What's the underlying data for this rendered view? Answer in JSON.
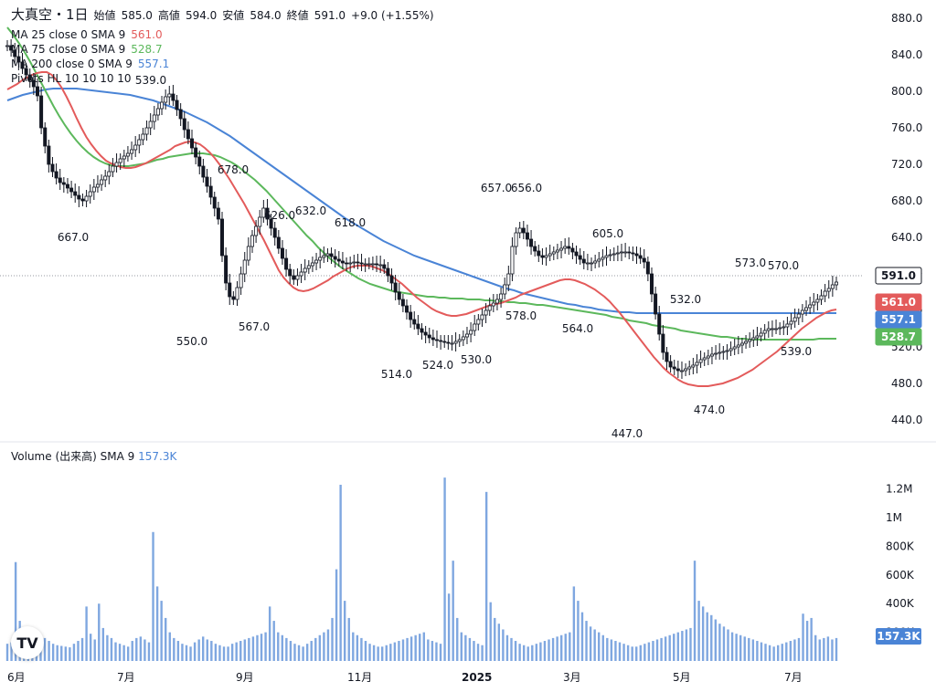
{
  "header": {
    "title": "大真空・1日",
    "open_label": "始値",
    "open": "585.0",
    "high_label": "高値",
    "high": "594.0",
    "low_label": "安値",
    "low": "584.0",
    "close_label": "終値",
    "close": "591.0",
    "change": "+9.0 (+1.55%)"
  },
  "indicators": [
    {
      "label": "MA 25 close 0 SMA 9",
      "value": "561.0",
      "color": "#e35b5b"
    },
    {
      "label": "MA 75 close 0 SMA 9",
      "value": "528.7",
      "color": "#5cb85c"
    },
    {
      "label": "MA 200 close 0 SMA 9",
      "value": "557.1",
      "color": "#4a84d6"
    },
    {
      "label": "Pivots HL 10 10 10 10",
      "value": "",
      "color": ""
    }
  ],
  "volume_legend": {
    "label": "Volume (出来高) SMA 9",
    "value": "157.3K"
  },
  "colors": {
    "up": "#ffffff",
    "down": "#131722",
    "ma25": "#e35b5b",
    "ma75": "#5cb85c",
    "ma200": "#4a84d6",
    "volume": "#7fa7e0"
  },
  "price_badges": [
    {
      "value": "591.0",
      "bg": "#ffffff",
      "fg": "#131722",
      "border": "#131722"
    },
    {
      "value": "561.0",
      "bg": "#e35b5b",
      "fg": "#ffffff"
    },
    {
      "value": "557.1",
      "bg": "#4a84d6",
      "fg": "#ffffff"
    },
    {
      "value": "528.7",
      "bg": "#5cb85c",
      "fg": "#ffffff"
    }
  ],
  "volume_badge": "157.3K",
  "chart_data": {
    "type": "candlestick",
    "price_axis": {
      "min": 440,
      "max": 880,
      "ticks": [
        "880.0",
        "840.0",
        "800.0",
        "760.0",
        "720.0",
        "680.0",
        "640.0",
        "600.0",
        "560.0",
        "520.0",
        "480.0",
        "440.0"
      ]
    },
    "volume_axis": {
      "ticks": [
        "1.2M",
        "1M",
        "800K",
        "600K",
        "400K",
        "200K"
      ]
    },
    "x_labels": [
      "6月",
      "7月",
      "9月",
      "11月",
      "2025",
      "3月",
      "5月",
      "7月"
    ],
    "pivots": [
      {
        "label": "539.0"
      },
      {
        "label": "667.0"
      },
      {
        "label": "550.0"
      },
      {
        "label": "678.0"
      },
      {
        "label": "567.0"
      },
      {
        "label": "626.0"
      },
      {
        "label": "632.0"
      },
      {
        "label": "618.0"
      },
      {
        "label": "514.0"
      },
      {
        "label": "524.0"
      },
      {
        "label": "530.0"
      },
      {
        "label": "657.0"
      },
      {
        "label": "656.0"
      },
      {
        "label": "578.0"
      },
      {
        "label": "605.0"
      },
      {
        "label": "564.0"
      },
      {
        "label": "447.0"
      },
      {
        "label": "532.0"
      },
      {
        "label": "474.0"
      },
      {
        "label": "573.0"
      },
      {
        "label": "570.0"
      },
      {
        "label": "539.0"
      }
    ],
    "closes": [
      850,
      845,
      838,
      832,
      825,
      818,
      812,
      805,
      795,
      760,
      740,
      720,
      712,
      705,
      700,
      698,
      694,
      690,
      686,
      682,
      680,
      685,
      690,
      695,
      698,
      703,
      707,
      712,
      718,
      722,
      726,
      729,
      732,
      736,
      741,
      747,
      753,
      760,
      767,
      774,
      781,
      788,
      794,
      797,
      790,
      780,
      770,
      758,
      748,
      738,
      728,
      718,
      706,
      696,
      684,
      672,
      660,
      620,
      590,
      575,
      572,
      585,
      600,
      615,
      630,
      642,
      652,
      662,
      672,
      660,
      650,
      640,
      628,
      617,
      605,
      598,
      594,
      598,
      602,
      606,
      609,
      612,
      615,
      618,
      620,
      622,
      619,
      616,
      614,
      612,
      611,
      612,
      613,
      612,
      611,
      611,
      611,
      611,
      610,
      610,
      606,
      598,
      590,
      580,
      572,
      565,
      558,
      550,
      545,
      540,
      536,
      533,
      530,
      528,
      527,
      526,
      525,
      524,
      524,
      526,
      528,
      531,
      534,
      538,
      545,
      550,
      555,
      560,
      565,
      568,
      572,
      578,
      588,
      600,
      630,
      645,
      650,
      645,
      638,
      630,
      625,
      620,
      618,
      620,
      622,
      624,
      626,
      628,
      630,
      628,
      624,
      620,
      616,
      612,
      612,
      612,
      614,
      616,
      618,
      620,
      621,
      622,
      623,
      624,
      624,
      623,
      622,
      620,
      617,
      613,
      600,
      578,
      556,
      534,
      514,
      504,
      498,
      496,
      494,
      494,
      496,
      498,
      500,
      503,
      506,
      508,
      510,
      512,
      513,
      514,
      515,
      516,
      518,
      520,
      522,
      524,
      526,
      528,
      530,
      532,
      535,
      538,
      540,
      540,
      540,
      541,
      542,
      545,
      548,
      552,
      556,
      560,
      563,
      566,
      569,
      572,
      576,
      581,
      584,
      588,
      591
    ],
    "ma25": [
      802,
      805,
      808,
      812,
      815,
      818,
      820,
      821,
      821,
      818,
      812,
      804,
      794,
      783,
      771,
      760,
      750,
      742,
      735,
      729,
      724,
      721,
      719,
      717,
      716,
      716,
      717,
      719,
      721,
      724,
      727,
      730,
      733,
      736,
      740,
      742,
      744,
      745,
      744,
      742,
      738,
      733,
      727,
      720,
      712,
      704,
      695,
      686,
      677,
      667,
      657,
      647,
      637,
      626,
      615,
      604,
      596,
      590,
      585,
      582,
      581,
      582,
      584,
      587,
      590,
      593,
      597,
      600,
      603,
      606,
      608,
      609,
      609,
      609,
      608,
      606,
      604,
      601,
      597,
      593,
      589,
      584,
      579,
      574,
      570,
      566,
      562,
      559,
      557,
      555,
      554,
      554,
      555,
      556,
      558,
      560,
      562,
      564,
      566,
      567,
      568,
      570,
      572,
      574,
      577,
      579,
      581,
      583,
      585,
      587,
      589,
      591,
      593,
      594,
      594,
      593,
      591,
      589,
      586,
      583,
      579,
      575,
      570,
      564,
      558,
      551,
      544,
      537,
      530,
      523,
      516,
      509,
      503,
      497,
      492,
      488,
      484,
      481,
      479,
      478,
      477,
      477,
      477,
      478,
      479,
      480,
      482,
      484,
      486,
      489,
      492,
      495,
      499,
      503,
      507,
      511,
      515,
      520,
      525,
      530,
      535,
      540,
      544,
      548,
      552,
      555,
      558,
      560,
      561
    ],
    "ma75": [
      870,
      862,
      853,
      843,
      832,
      820,
      808,
      796,
      784,
      773,
      763,
      754,
      746,
      739,
      733,
      728,
      724,
      721,
      719,
      718,
      718,
      718,
      719,
      720,
      721,
      723,
      725,
      726,
      728,
      729,
      730,
      731,
      732,
      732,
      732,
      731,
      730,
      728,
      725,
      722,
      718,
      713,
      708,
      703,
      697,
      691,
      684,
      677,
      670,
      663,
      656,
      649,
      642,
      636,
      629,
      623,
      617,
      612,
      607,
      603,
      599,
      595,
      592,
      589,
      587,
      585,
      583,
      581,
      580,
      579,
      578,
      577,
      576,
      575,
      575,
      574,
      574,
      573,
      573,
      573,
      572,
      572,
      572,
      571,
      571,
      570,
      570,
      569,
      569,
      568,
      568,
      567,
      566,
      566,
      565,
      564,
      563,
      562,
      561,
      560,
      559,
      558,
      557,
      556,
      555,
      553,
      552,
      551,
      549,
      548,
      547,
      546,
      544,
      543,
      542,
      541,
      540,
      538,
      537,
      536,
      535,
      534,
      533,
      532,
      531,
      531,
      530,
      529,
      529,
      528,
      528,
      528,
      528,
      528,
      528,
      528,
      528,
      528,
      528,
      528,
      528,
      529,
      529,
      529,
      529
    ],
    "ma200": [
      790,
      793,
      796,
      798,
      800,
      802,
      803,
      803,
      803,
      803,
      802,
      801,
      800,
      799,
      798,
      797,
      796,
      794,
      792,
      790,
      787,
      784,
      781,
      778,
      774,
      770,
      766,
      761,
      756,
      751,
      745,
      739,
      733,
      727,
      721,
      715,
      709,
      703,
      697,
      691,
      685,
      679,
      673,
      667,
      661,
      656,
      651,
      646,
      641,
      636,
      632,
      628,
      624,
      620,
      617,
      614,
      611,
      608,
      605,
      602,
      599,
      596,
      593,
      590,
      587,
      584,
      582,
      579,
      577,
      575,
      573,
      571,
      569,
      567,
      566,
      564,
      563,
      561,
      560,
      559,
      558,
      558,
      557,
      557,
      557,
      557,
      557,
      557,
      557,
      557,
      557,
      557,
      557,
      557,
      557,
      557,
      557,
      557,
      557,
      557,
      557,
      557,
      557,
      557,
      557,
      557,
      557,
      557,
      557
    ],
    "volumes": [
      120,
      130,
      690,
      280,
      150,
      120,
      110,
      100,
      95,
      160,
      140,
      120,
      110,
      105,
      100,
      95,
      120,
      140,
      160,
      380,
      190,
      150,
      400,
      230,
      180,
      160,
      130,
      120,
      110,
      100,
      140,
      160,
      170,
      150,
      130,
      900,
      520,
      420,
      300,
      200,
      160,
      140,
      120,
      110,
      100,
      130,
      150,
      170,
      150,
      140,
      120,
      110,
      100,
      100,
      120,
      130,
      140,
      150,
      160,
      170,
      180,
      190,
      200,
      380,
      280,
      200,
      180,
      160,
      140,
      120,
      110,
      100,
      120,
      140,
      160,
      180,
      200,
      220,
      300,
      640,
      1230,
      420,
      300,
      200,
      180,
      160,
      140,
      120,
      110,
      100,
      100,
      110,
      120,
      130,
      140,
      150,
      160,
      170,
      180,
      190,
      200,
      150,
      140,
      130,
      120,
      1280,
      470,
      700,
      300,
      200,
      180,
      160,
      140,
      120,
      110,
      1180,
      410,
      300,
      260,
      220,
      180,
      160,
      140,
      120,
      110,
      100,
      110,
      120,
      130,
      140,
      150,
      160,
      170,
      180,
      190,
      200,
      520,
      420,
      340,
      280,
      240,
      220,
      200,
      180,
      160,
      150,
      140,
      130,
      120,
      110,
      100,
      100,
      110,
      120,
      130,
      140,
      150,
      160,
      170,
      180,
      190,
      200,
      210,
      220,
      230,
      700,
      420,
      380,
      340,
      320,
      290,
      260,
      240,
      220,
      200,
      190,
      180,
      170,
      160,
      150,
      140,
      130,
      120,
      110,
      100,
      110,
      120,
      130,
      140,
      150,
      160,
      330,
      280,
      300,
      180,
      150,
      160,
      170,
      150,
      160
    ]
  }
}
